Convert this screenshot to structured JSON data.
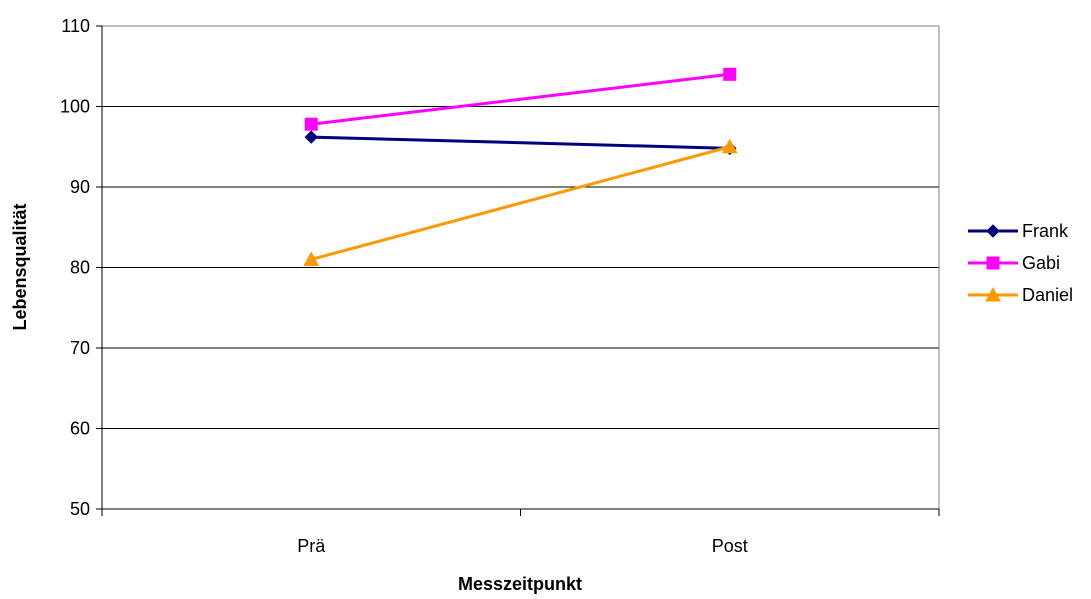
{
  "chart_data": {
    "type": "line",
    "categories": [
      "Prä",
      "Post"
    ],
    "series": [
      {
        "name": "Frank",
        "values": [
          96.2,
          94.8
        ],
        "color": "#000080",
        "marker": "diamond"
      },
      {
        "name": "Gabi",
        "values": [
          97.8,
          104.0
        ],
        "color": "#FF00FF",
        "marker": "square"
      },
      {
        "name": "Daniel",
        "values": [
          81.0,
          95.0
        ],
        "color": "#FF9900",
        "marker": "triangle"
      }
    ],
    "xlabel": "Messzeitpunkt",
    "ylabel": "Lebensqualität",
    "ylim": [
      50,
      110
    ],
    "yticks": [
      50,
      60,
      70,
      80,
      90,
      100,
      110
    ],
    "grid": true,
    "legend": "right"
  }
}
